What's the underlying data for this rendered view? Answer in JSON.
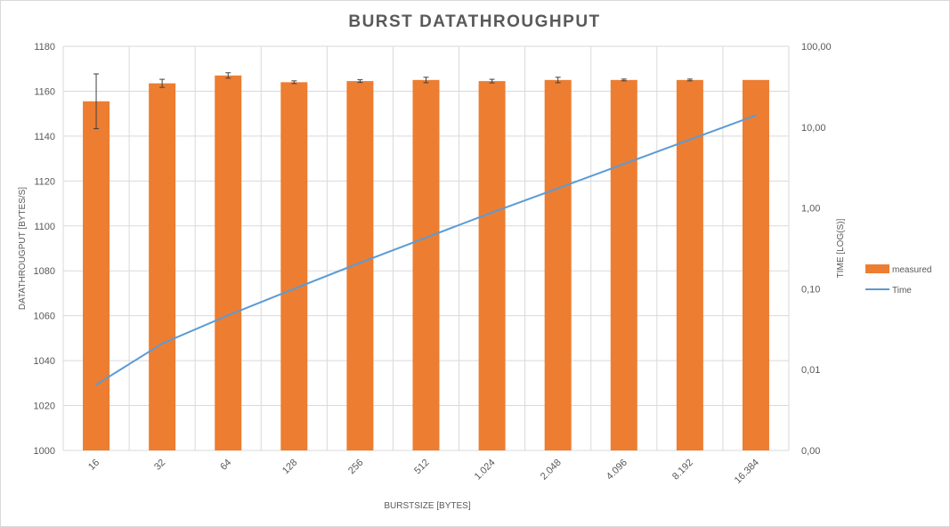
{
  "chart_data": {
    "type": "bar",
    "title": "BURST DATATHROUGHPUT",
    "xlabel": "BURSTSIZE [BYTES]",
    "ylabel": "DATATHROUGPUT [BYTES/S]",
    "y2label": "TIME [LOG(S)]",
    "categories": [
      "16",
      "32",
      "64",
      "128",
      "256",
      "512",
      "1.024",
      "2.048",
      "4.096",
      "8.192",
      "16.384"
    ],
    "ylim": [
      1000,
      1180
    ],
    "yticks": [
      1000,
      1020,
      1040,
      1060,
      1080,
      1100,
      1120,
      1140,
      1160,
      1180
    ],
    "y2scale": "log",
    "y2ticks": [
      0.001,
      0.01,
      0.1,
      1,
      10,
      100
    ],
    "y2tick_labels": [
      "0,00",
      "0,01",
      "0,10",
      "1,00",
      "10,00",
      "100,00"
    ],
    "grid": true,
    "legend_position": "right",
    "series": [
      {
        "name": "measured",
        "type": "bar",
        "axis": "left",
        "color": "#ED7D31",
        "values": [
          1155.5,
          1163.5,
          1167,
          1164,
          1164.5,
          1165,
          1164.5,
          1165,
          1165,
          1165,
          1165
        ],
        "error": [
          12.2,
          1.8,
          1.2,
          0.6,
          0.6,
          1.2,
          0.8,
          1.2,
          0.4,
          0.4,
          0
        ]
      },
      {
        "name": "Time",
        "type": "line",
        "axis": "right",
        "color": "#5B9BD5",
        "values": [
          0.0065,
          0.021,
          0.047,
          0.1,
          0.21,
          0.43,
          0.88,
          1.75,
          3.5,
          7.0,
          14.0
        ]
      }
    ]
  }
}
